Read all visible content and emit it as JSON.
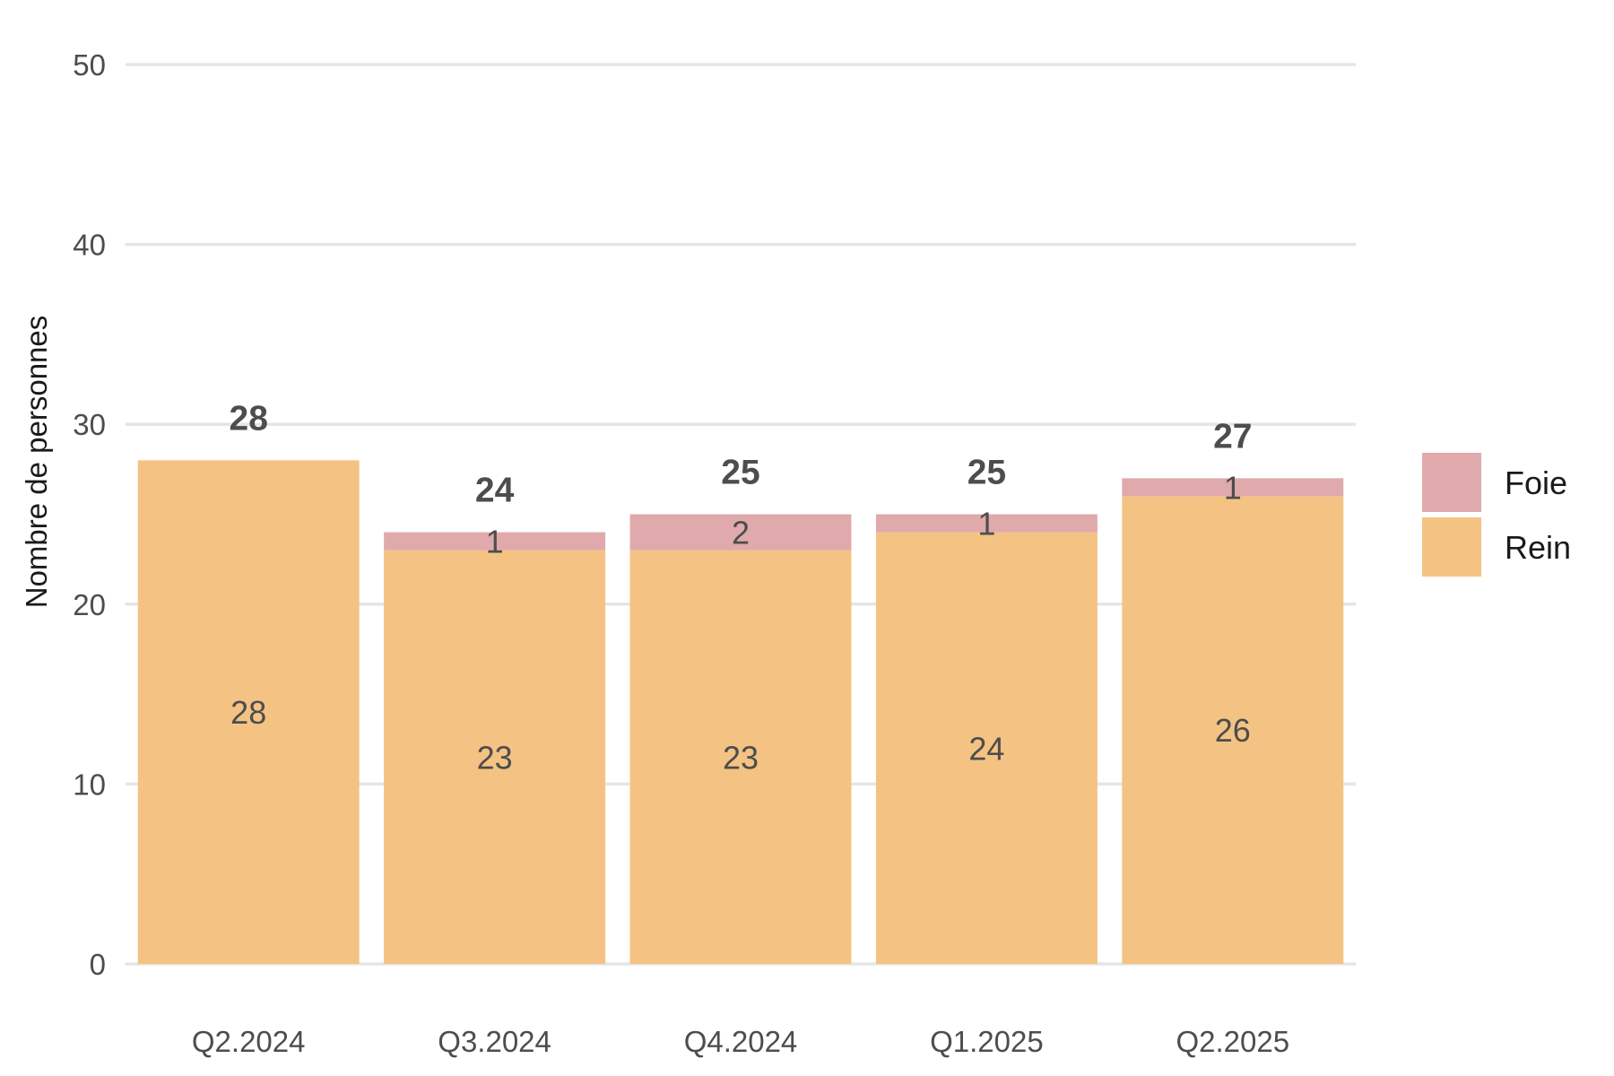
{
  "chart_data": {
    "type": "bar",
    "stacked": true,
    "categories": [
      "Q2.2024",
      "Q3.2024",
      "Q4.2024",
      "Q1.2025",
      "Q2.2025"
    ],
    "series": [
      {
        "name": "Rein",
        "values": [
          28,
          23,
          23,
          24,
          26
        ],
        "color": "#f4c384"
      },
      {
        "name": "Foie",
        "values": [
          0,
          1,
          2,
          1,
          1
        ],
        "color": "#e0aaac"
      }
    ],
    "totals": [
      28,
      24,
      25,
      25,
      27
    ],
    "title": "",
    "xlabel": "",
    "ylabel": "Nombre de personnes",
    "ylim": [
      0,
      50
    ],
    "yticks": [
      0,
      10,
      20,
      30,
      40,
      50
    ],
    "grid": "horizontal",
    "legend": {
      "position": "right",
      "order": [
        "Foie",
        "Rein"
      ]
    }
  }
}
